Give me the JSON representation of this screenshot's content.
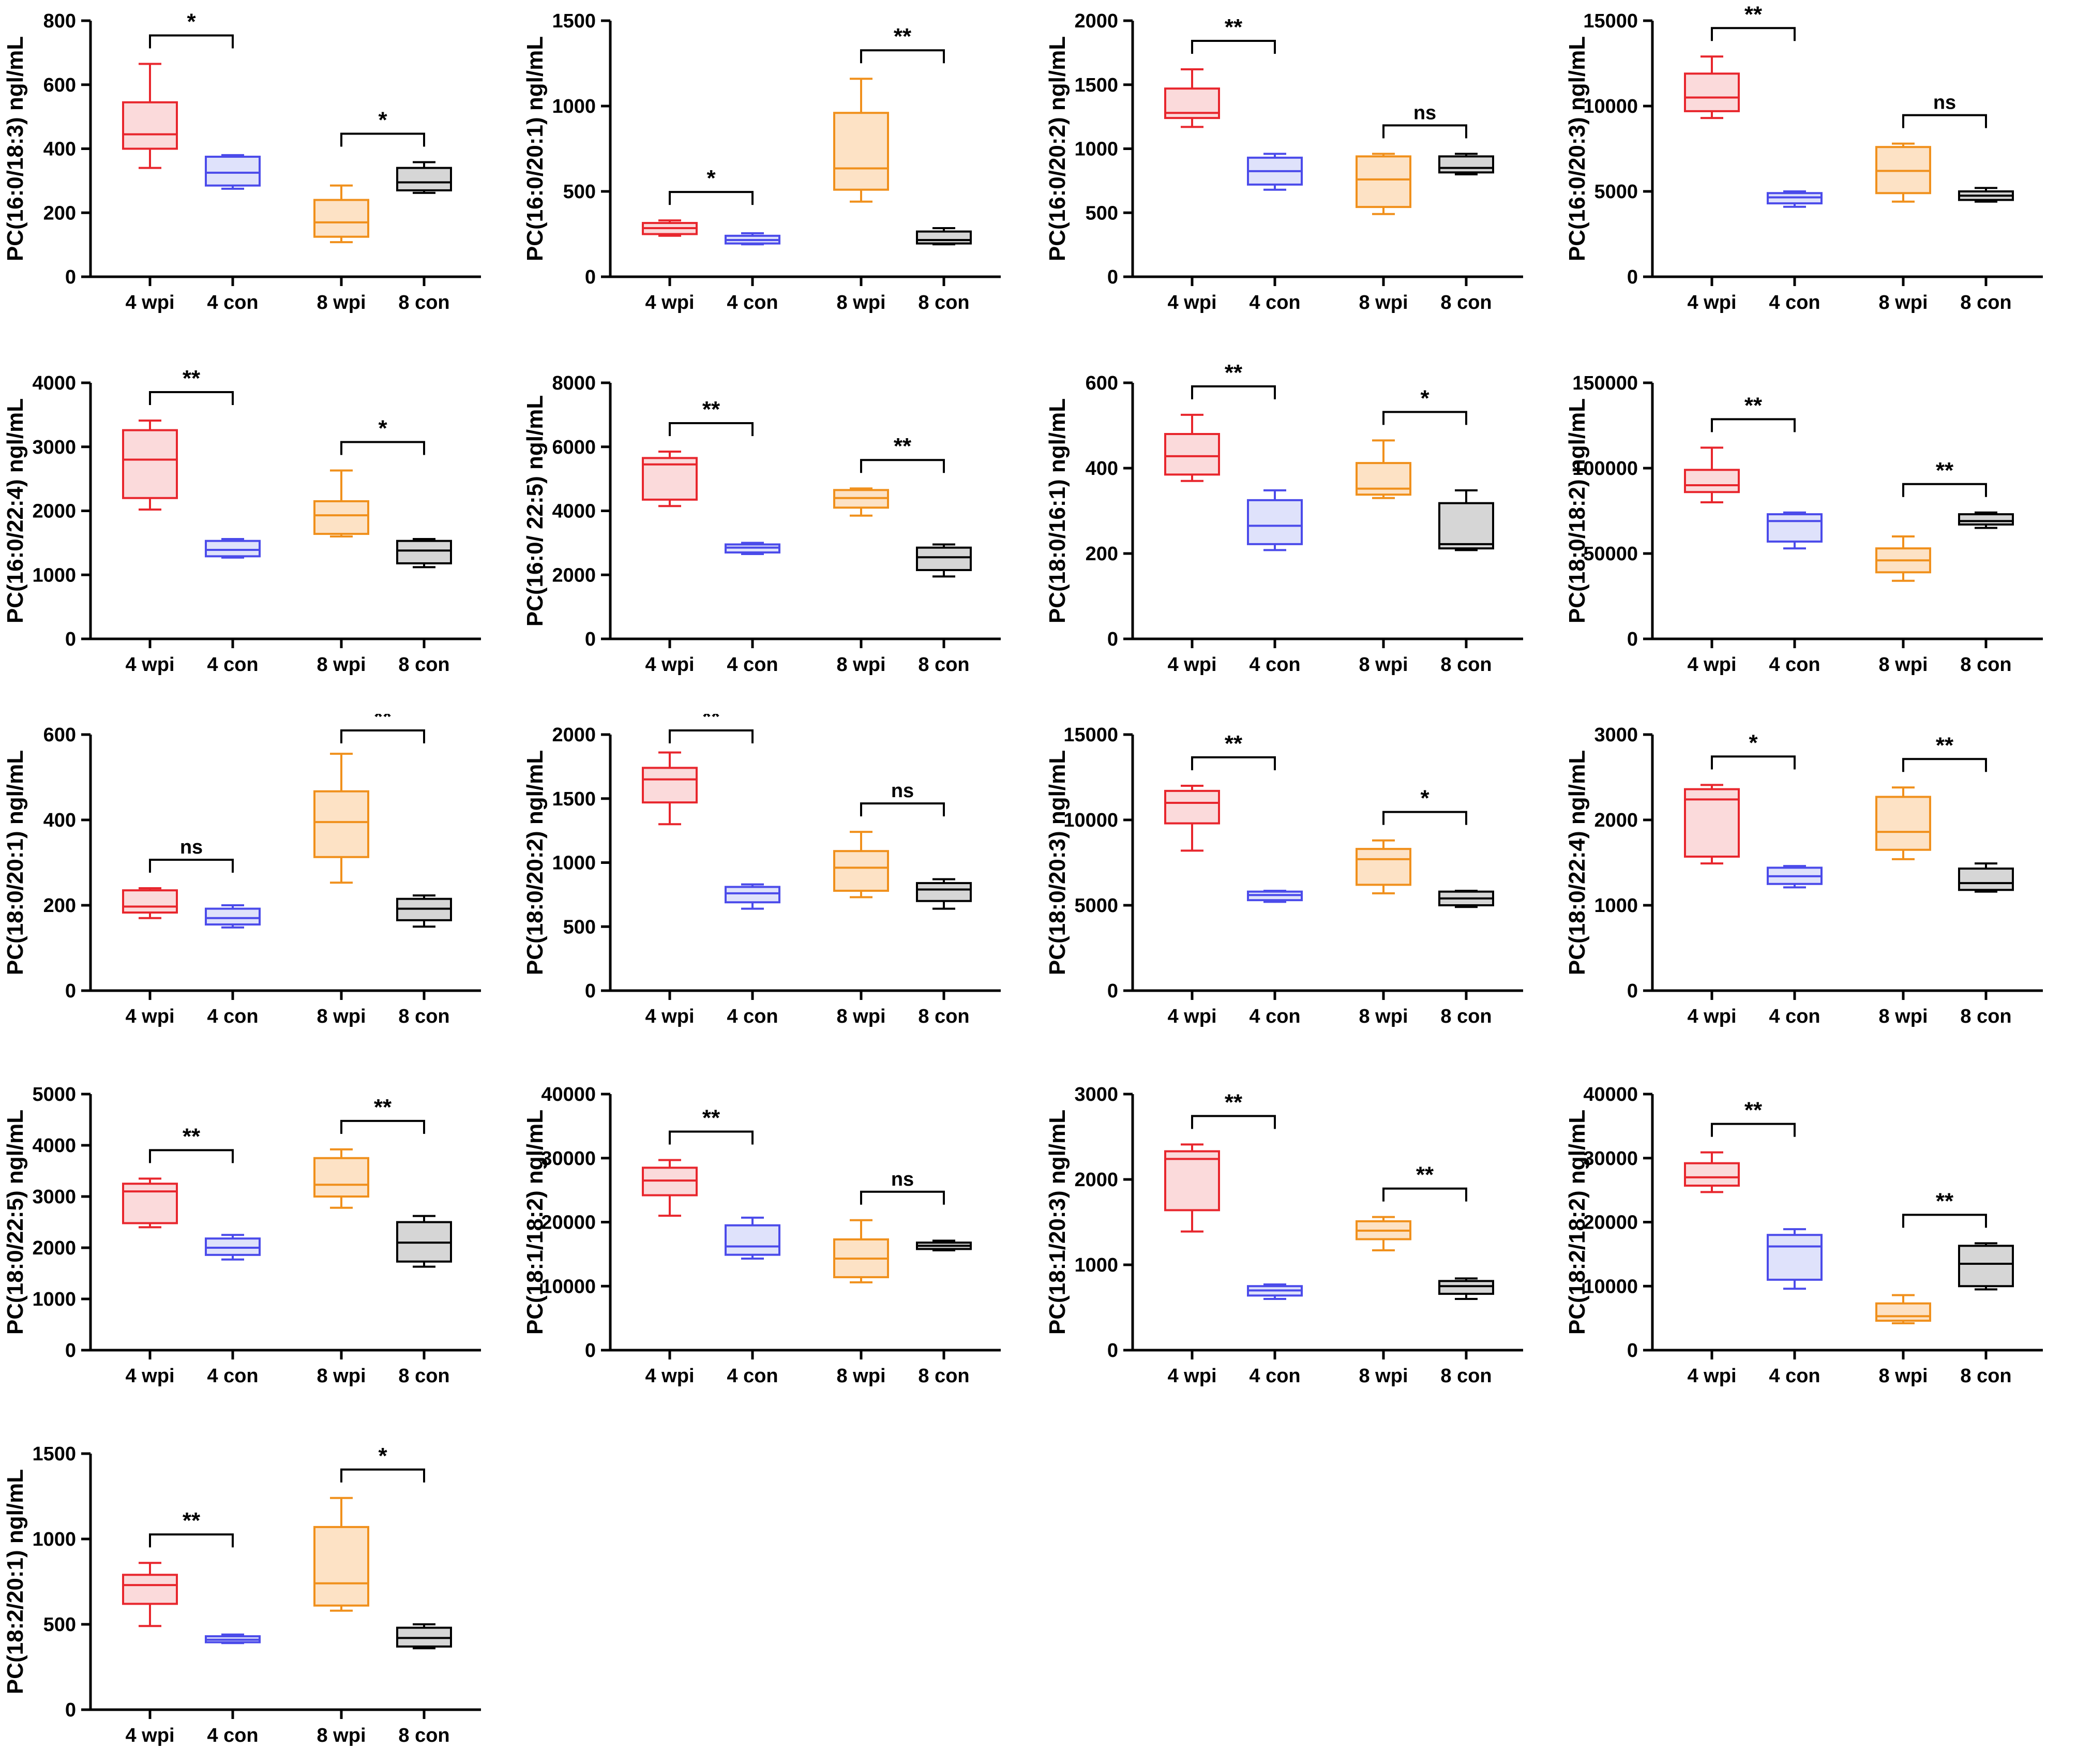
{
  "colors": {
    "4 wpi": {
      "stroke": "#e8262d",
      "fill": "#fbdadb"
    },
    "4 con": {
      "stroke": "#4b4bea",
      "fill": "#dfe2fb"
    },
    "8 wpi": {
      "stroke": "#f0901c",
      "fill": "#fde2c5"
    },
    "8 con": {
      "stroke": "#000000",
      "fill": "#d6d6d6"
    }
  },
  "chart_data": [
    {
      "type": "box",
      "ylabel": "PC(16:0/18:3) ngl/mL",
      "ylim": [
        0,
        800
      ],
      "yticks": [
        0,
        200,
        400,
        600,
        800
      ],
      "categories": [
        "4 wpi",
        "4 con",
        "8 wpi",
        "8 con"
      ],
      "boxes": [
        {
          "min": 340,
          "q1": 400,
          "median": 445,
          "q3": 545,
          "max": 665
        },
        {
          "min": 275,
          "q1": 285,
          "median": 325,
          "q3": 375,
          "max": 380
        },
        {
          "min": 108,
          "q1": 125,
          "median": 170,
          "q3": 240,
          "max": 285
        },
        {
          "min": 262,
          "q1": 270,
          "median": 295,
          "q3": 340,
          "max": 358
        }
      ],
      "significance": [
        {
          "label": "*",
          "pair": [
            0,
            1
          ]
        },
        {
          "label": "*",
          "pair": [
            2,
            3
          ]
        }
      ]
    },
    {
      "type": "box",
      "ylabel": "PC(16:0/20:1) ngl/mL",
      "ylim": [
        0,
        1500
      ],
      "yticks": [
        0,
        500,
        1000,
        1500
      ],
      "categories": [
        "4 wpi",
        "4 con",
        "8 wpi",
        "8 con"
      ],
      "boxes": [
        {
          "min": 240,
          "q1": 250,
          "median": 285,
          "q3": 315,
          "max": 330
        },
        {
          "min": 190,
          "q1": 195,
          "median": 215,
          "q3": 240,
          "max": 255
        },
        {
          "min": 440,
          "q1": 510,
          "median": 635,
          "q3": 960,
          "max": 1160
        },
        {
          "min": 190,
          "q1": 195,
          "median": 215,
          "q3": 265,
          "max": 285
        }
      ],
      "significance": [
        {
          "label": "*",
          "pair": [
            0,
            1
          ]
        },
        {
          "label": "**",
          "pair": [
            2,
            3
          ]
        }
      ]
    },
    {
      "type": "box",
      "ylabel": "PC(16:0/20:2) ngl/mL",
      "ylim": [
        0,
        2000
      ],
      "yticks": [
        0,
        500,
        1000,
        1500,
        2000
      ],
      "categories": [
        "4 wpi",
        "4 con",
        "8 wpi",
        "8 con"
      ],
      "boxes": [
        {
          "min": 1170,
          "q1": 1240,
          "median": 1280,
          "q3": 1470,
          "max": 1620
        },
        {
          "min": 680,
          "q1": 720,
          "median": 825,
          "q3": 930,
          "max": 960
        },
        {
          "min": 490,
          "q1": 545,
          "median": 760,
          "q3": 940,
          "max": 960
        },
        {
          "min": 800,
          "q1": 815,
          "median": 850,
          "q3": 940,
          "max": 960
        }
      ],
      "significance": [
        {
          "label": "**",
          "pair": [
            0,
            1
          ]
        },
        {
          "label": "ns",
          "pair": [
            2,
            3
          ]
        }
      ]
    },
    {
      "type": "box",
      "ylabel": "PC(16:0/20:3) ngl/mL",
      "ylim": [
        0,
        15000
      ],
      "yticks": [
        0,
        5000,
        10000,
        15000
      ],
      "categories": [
        "4 wpi",
        "4 con",
        "8 wpi",
        "8 con"
      ],
      "boxes": [
        {
          "min": 9300,
          "q1": 9700,
          "median": 10500,
          "q3": 11900,
          "max": 12900
        },
        {
          "min": 4100,
          "q1": 4300,
          "median": 4650,
          "q3": 4900,
          "max": 5000
        },
        {
          "min": 4400,
          "q1": 4900,
          "median": 6200,
          "q3": 7600,
          "max": 7800
        },
        {
          "min": 4400,
          "q1": 4500,
          "median": 4750,
          "q3": 5000,
          "max": 5200
        }
      ],
      "significance": [
        {
          "label": "**",
          "pair": [
            0,
            1
          ]
        },
        {
          "label": "ns",
          "pair": [
            2,
            3
          ]
        }
      ]
    },
    {
      "type": "box",
      "ylabel": "PC(16:0/22:4) ngl/mL",
      "ylim": [
        0,
        4000
      ],
      "yticks": [
        0,
        1000,
        2000,
        3000,
        4000
      ],
      "categories": [
        "4 wpi",
        "4 con",
        "8 wpi",
        "8 con"
      ],
      "boxes": [
        {
          "min": 2020,
          "q1": 2200,
          "median": 2800,
          "q3": 3260,
          "max": 3410
        },
        {
          "min": 1270,
          "q1": 1290,
          "median": 1390,
          "q3": 1530,
          "max": 1560
        },
        {
          "min": 1600,
          "q1": 1640,
          "median": 1930,
          "q3": 2150,
          "max": 2630
        },
        {
          "min": 1120,
          "q1": 1180,
          "median": 1380,
          "q3": 1530,
          "max": 1560
        }
      ],
      "significance": [
        {
          "label": "**",
          "pair": [
            0,
            1
          ]
        },
        {
          "label": "*",
          "pair": [
            2,
            3
          ]
        }
      ]
    },
    {
      "type": "box",
      "ylabel": "PC(16:0/ 22:5) ngl/mL",
      "ylim": [
        0,
        8000
      ],
      "yticks": [
        0,
        2000,
        4000,
        6000,
        8000
      ],
      "categories": [
        "4 wpi",
        "4 con",
        "8 wpi",
        "8 con"
      ],
      "boxes": [
        {
          "min": 4150,
          "q1": 4350,
          "median": 5450,
          "q3": 5650,
          "max": 5850
        },
        {
          "min": 2650,
          "q1": 2700,
          "median": 2850,
          "q3": 2950,
          "max": 3000
        },
        {
          "min": 3850,
          "q1": 4100,
          "median": 4400,
          "q3": 4650,
          "max": 4700
        },
        {
          "min": 1950,
          "q1": 2150,
          "median": 2550,
          "q3": 2850,
          "max": 2950
        }
      ],
      "significance": [
        {
          "label": "**",
          "pair": [
            0,
            1
          ]
        },
        {
          "label": "**",
          "pair": [
            2,
            3
          ]
        }
      ]
    },
    {
      "type": "box",
      "ylabel": "PC(18:0/16:1) ngl/mL",
      "ylim": [
        0,
        600
      ],
      "yticks": [
        0,
        200,
        400,
        600
      ],
      "categories": [
        "4 wpi",
        "4 con",
        "8 wpi",
        "8 con"
      ],
      "boxes": [
        {
          "min": 370,
          "q1": 385,
          "median": 428,
          "q3": 480,
          "max": 525
        },
        {
          "min": 208,
          "q1": 222,
          "median": 265,
          "q3": 325,
          "max": 348
        },
        {
          "min": 330,
          "q1": 338,
          "median": 352,
          "q3": 412,
          "max": 465
        },
        {
          "min": 208,
          "q1": 212,
          "median": 222,
          "q3": 318,
          "max": 348
        }
      ],
      "significance": [
        {
          "label": "**",
          "pair": [
            0,
            1
          ]
        },
        {
          "label": "*",
          "pair": [
            2,
            3
          ]
        }
      ]
    },
    {
      "type": "box",
      "ylabel": "PC(18:0/18:2) ngl/mL",
      "ylim": [
        0,
        150000
      ],
      "yticks": [
        0,
        50000,
        100000,
        150000
      ],
      "categories": [
        "4 wpi",
        "4 con",
        "8 wpi",
        "8 con"
      ],
      "boxes": [
        {
          "min": 80000,
          "q1": 86000,
          "median": 90000,
          "q3": 99000,
          "max": 112000
        },
        {
          "min": 53000,
          "q1": 57000,
          "median": 69000,
          "q3": 73000,
          "max": 74000
        },
        {
          "min": 34000,
          "q1": 39000,
          "median": 46000,
          "q3": 53000,
          "max": 60000
        },
        {
          "min": 65000,
          "q1": 67000,
          "median": 69000,
          "q3": 73000,
          "max": 74000
        }
      ],
      "significance": [
        {
          "label": "**",
          "pair": [
            0,
            1
          ]
        },
        {
          "label": "**",
          "pair": [
            2,
            3
          ]
        }
      ]
    },
    {
      "type": "box",
      "ylabel": "PC(18:0/20:1) ngl/mL",
      "ylim": [
        0,
        600
      ],
      "yticks": [
        0,
        200,
        400,
        600
      ],
      "categories": [
        "4 wpi",
        "4 con",
        "8 wpi",
        "8 con"
      ],
      "boxes": [
        {
          "min": 170,
          "q1": 183,
          "median": 197,
          "q3": 235,
          "max": 240
        },
        {
          "min": 148,
          "q1": 155,
          "median": 170,
          "q3": 192,
          "max": 200
        },
        {
          "min": 253,
          "q1": 313,
          "median": 395,
          "q3": 467,
          "max": 555
        },
        {
          "min": 150,
          "q1": 165,
          "median": 192,
          "q3": 215,
          "max": 223
        }
      ],
      "significance": [
        {
          "label": "ns",
          "pair": [
            0,
            1
          ]
        },
        {
          "label": "**",
          "pair": [
            2,
            3
          ]
        }
      ]
    },
    {
      "type": "box",
      "ylabel": "PC(18:0/20:2) ngl/mL",
      "ylim": [
        0,
        2000
      ],
      "yticks": [
        0,
        500,
        1000,
        1500,
        2000
      ],
      "categories": [
        "4 wpi",
        "4 con",
        "8 wpi",
        "8 con"
      ],
      "boxes": [
        {
          "min": 1300,
          "q1": 1470,
          "median": 1650,
          "q3": 1740,
          "max": 1860
        },
        {
          "min": 640,
          "q1": 690,
          "median": 760,
          "q3": 810,
          "max": 830
        },
        {
          "min": 730,
          "q1": 780,
          "median": 960,
          "q3": 1090,
          "max": 1240
        },
        {
          "min": 640,
          "q1": 700,
          "median": 790,
          "q3": 840,
          "max": 870
        }
      ],
      "significance": [
        {
          "label": "**",
          "pair": [
            0,
            1
          ]
        },
        {
          "label": "ns",
          "pair": [
            2,
            3
          ]
        }
      ]
    },
    {
      "type": "box",
      "ylabel": "PC(18:0/20:3) ngl/mL",
      "ylim": [
        0,
        15000
      ],
      "yticks": [
        0,
        5000,
        10000,
        15000
      ],
      "categories": [
        "4 wpi",
        "4 con",
        "8 wpi",
        "8 con"
      ],
      "boxes": [
        {
          "min": 8200,
          "q1": 9800,
          "median": 11000,
          "q3": 11700,
          "max": 12000
        },
        {
          "min": 5200,
          "q1": 5300,
          "median": 5600,
          "q3": 5800,
          "max": 5850
        },
        {
          "min": 5700,
          "q1": 6200,
          "median": 7700,
          "q3": 8300,
          "max": 8800
        },
        {
          "min": 4900,
          "q1": 5000,
          "median": 5400,
          "q3": 5800,
          "max": 5850
        }
      ],
      "significance": [
        {
          "label": "**",
          "pair": [
            0,
            1
          ]
        },
        {
          "label": "*",
          "pair": [
            2,
            3
          ]
        }
      ]
    },
    {
      "type": "box",
      "ylabel": "PC(18:0/22:4) ngl/mL",
      "ylim": [
        0,
        3000
      ],
      "yticks": [
        0,
        1000,
        2000,
        3000
      ],
      "categories": [
        "4 wpi",
        "4 con",
        "8 wpi",
        "8 con"
      ],
      "boxes": [
        {
          "min": 1490,
          "q1": 1570,
          "median": 2240,
          "q3": 2360,
          "max": 2410
        },
        {
          "min": 1210,
          "q1": 1250,
          "median": 1340,
          "q3": 1440,
          "max": 1460
        },
        {
          "min": 1540,
          "q1": 1650,
          "median": 1860,
          "q3": 2270,
          "max": 2380
        },
        {
          "min": 1160,
          "q1": 1180,
          "median": 1260,
          "q3": 1430,
          "max": 1490
        }
      ],
      "significance": [
        {
          "label": "*",
          "pair": [
            0,
            1
          ]
        },
        {
          "label": "**",
          "pair": [
            2,
            3
          ]
        }
      ]
    },
    {
      "type": "box",
      "ylabel": "PC(18:0/22:5) ngl/mL",
      "ylim": [
        0,
        5000
      ],
      "yticks": [
        0,
        1000,
        2000,
        3000,
        4000,
        5000
      ],
      "categories": [
        "4 wpi",
        "4 con",
        "8 wpi",
        "8 con"
      ],
      "boxes": [
        {
          "min": 2400,
          "q1": 2480,
          "median": 3100,
          "q3": 3250,
          "max": 3350
        },
        {
          "min": 1770,
          "q1": 1860,
          "median": 2000,
          "q3": 2180,
          "max": 2250
        },
        {
          "min": 2780,
          "q1": 3000,
          "median": 3230,
          "q3": 3750,
          "max": 3920
        },
        {
          "min": 1630,
          "q1": 1730,
          "median": 2100,
          "q3": 2500,
          "max": 2620
        }
      ],
      "significance": [
        {
          "label": "**",
          "pair": [
            0,
            1
          ]
        },
        {
          "label": "**",
          "pair": [
            2,
            3
          ]
        }
      ]
    },
    {
      "type": "box",
      "ylabel": "PC(18:1/18:2) ngl/mL",
      "ylim": [
        0,
        40000
      ],
      "yticks": [
        0,
        10000,
        20000,
        30000,
        40000
      ],
      "categories": [
        "4 wpi",
        "4 con",
        "8 wpi",
        "8 con"
      ],
      "boxes": [
        {
          "min": 21000,
          "q1": 24200,
          "median": 26500,
          "q3": 28500,
          "max": 29700
        },
        {
          "min": 14300,
          "q1": 14900,
          "median": 16200,
          "q3": 19500,
          "max": 20700
        },
        {
          "min": 10600,
          "q1": 11400,
          "median": 14300,
          "q3": 17300,
          "max": 20300
        },
        {
          "min": 15600,
          "q1": 15800,
          "median": 16300,
          "q3": 16800,
          "max": 17100
        }
      ],
      "significance": [
        {
          "label": "**",
          "pair": [
            0,
            1
          ]
        },
        {
          "label": "ns",
          "pair": [
            2,
            3
          ]
        }
      ]
    },
    {
      "type": "box",
      "ylabel": "PC(18:1/20:3) ngl/mL",
      "ylim": [
        0,
        3000
      ],
      "yticks": [
        0,
        1000,
        2000,
        3000
      ],
      "categories": [
        "4 wpi",
        "4 con",
        "8 wpi",
        "8 con"
      ],
      "boxes": [
        {
          "min": 1390,
          "q1": 1640,
          "median": 2240,
          "q3": 2330,
          "max": 2410
        },
        {
          "min": 600,
          "q1": 640,
          "median": 700,
          "q3": 750,
          "max": 770
        },
        {
          "min": 1170,
          "q1": 1300,
          "median": 1400,
          "q3": 1510,
          "max": 1560
        },
        {
          "min": 600,
          "q1": 660,
          "median": 750,
          "q3": 810,
          "max": 840
        }
      ],
      "significance": [
        {
          "label": "**",
          "pair": [
            0,
            1
          ]
        },
        {
          "label": "**",
          "pair": [
            2,
            3
          ]
        }
      ]
    },
    {
      "type": "box",
      "ylabel": "PC(18:2/18:2) ngl/mL",
      "ylim": [
        0,
        40000
      ],
      "yticks": [
        0,
        10000,
        20000,
        30000,
        40000
      ],
      "categories": [
        "4 wpi",
        "4 con",
        "8 wpi",
        "8 con"
      ],
      "boxes": [
        {
          "min": 24700,
          "q1": 25700,
          "median": 27000,
          "q3": 29200,
          "max": 30900
        },
        {
          "min": 9600,
          "q1": 11000,
          "median": 16200,
          "q3": 18000,
          "max": 18900
        },
        {
          "min": 4200,
          "q1": 4600,
          "median": 5300,
          "q3": 7300,
          "max": 8600
        },
        {
          "min": 9500,
          "q1": 10000,
          "median": 13500,
          "q3": 16300,
          "max": 16700
        }
      ],
      "significance": [
        {
          "label": "**",
          "pair": [
            0,
            1
          ]
        },
        {
          "label": "**",
          "pair": [
            2,
            3
          ]
        }
      ]
    },
    {
      "type": "box",
      "ylabel": "PC(18:2/20:1) ngl/mL",
      "ylim": [
        0,
        1500
      ],
      "yticks": [
        0,
        500,
        1000,
        1500
      ],
      "categories": [
        "4 wpi",
        "4 con",
        "8 wpi",
        "8 con"
      ],
      "boxes": [
        {
          "min": 490,
          "q1": 620,
          "median": 730,
          "q3": 790,
          "max": 860
        },
        {
          "min": 390,
          "q1": 395,
          "median": 410,
          "q3": 430,
          "max": 440
        },
        {
          "min": 580,
          "q1": 610,
          "median": 740,
          "q3": 1070,
          "max": 1240
        },
        {
          "min": 360,
          "q1": 370,
          "median": 420,
          "q3": 480,
          "max": 500
        }
      ],
      "significance": [
        {
          "label": "**",
          "pair": [
            0,
            1
          ]
        },
        {
          "label": "*",
          "pair": [
            2,
            3
          ]
        }
      ]
    }
  ]
}
